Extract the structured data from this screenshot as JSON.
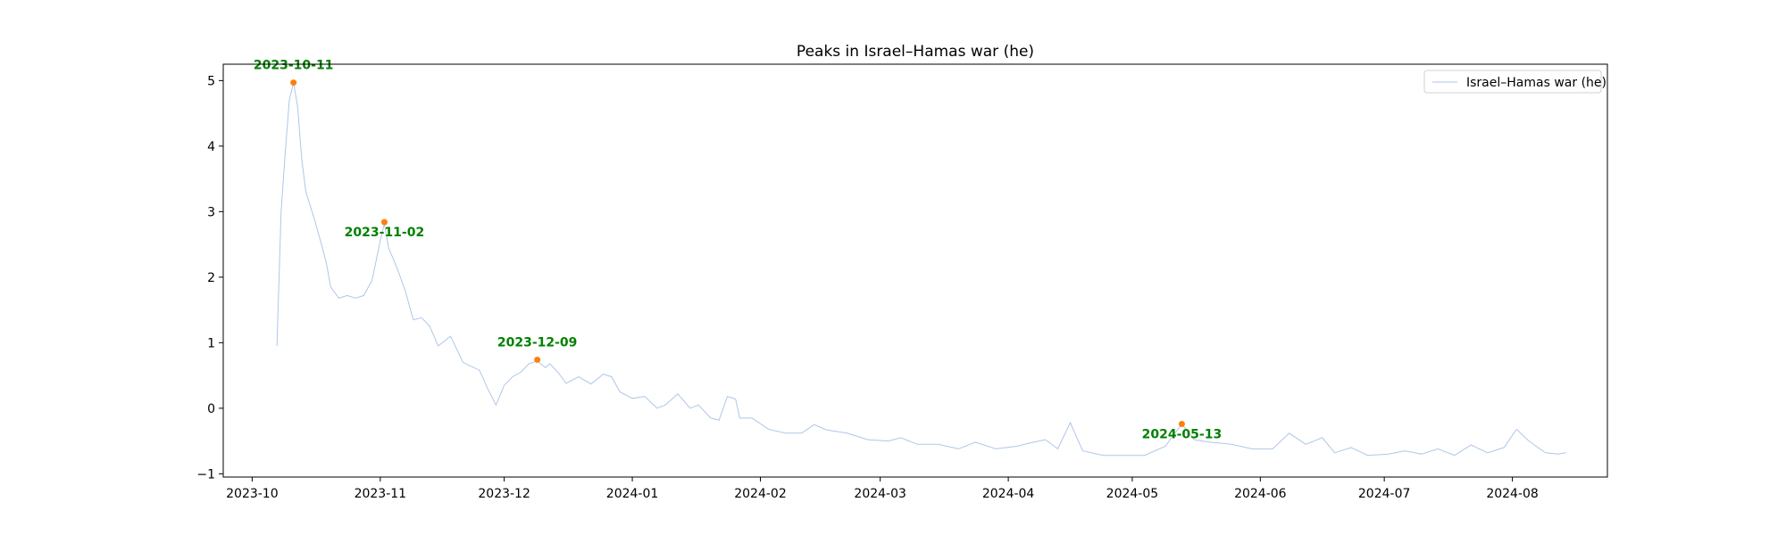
{
  "chart_data": {
    "type": "line",
    "title": "Peaks in Israel–Hamas war (he)",
    "xlabel": "",
    "ylabel": "",
    "xlim": [
      "2023-09-24",
      "2024-08-24"
    ],
    "ylim": [
      -1.05,
      5.25
    ],
    "x_ticks": [
      "2023-10-01",
      "2023-11-01",
      "2023-12-01",
      "2024-01-01",
      "2024-02-01",
      "2024-03-01",
      "2024-04-01",
      "2024-05-01",
      "2024-06-01",
      "2024-07-01",
      "2024-08-01"
    ],
    "y_ticks": [
      -1,
      0,
      1,
      2,
      3,
      4,
      5
    ],
    "grid": false,
    "legend": {
      "position": "top-right",
      "entries": [
        "Israel–Hamas war (he)"
      ]
    },
    "series": [
      {
        "name": "Israel–Hamas war (he)",
        "color": "#aec7e8",
        "points": [
          [
            "2023-10-07",
            0.95
          ],
          [
            "2023-10-08",
            3.0
          ],
          [
            "2023-10-09",
            3.9
          ],
          [
            "2023-10-10",
            4.7
          ],
          [
            "2023-10-11",
            4.97
          ],
          [
            "2023-10-12",
            4.6
          ],
          [
            "2023-10-13",
            3.8
          ],
          [
            "2023-10-14",
            3.3
          ],
          [
            "2023-10-16",
            2.9
          ],
          [
            "2023-10-18",
            2.45
          ],
          [
            "2023-10-19",
            2.2
          ],
          [
            "2023-10-20",
            1.85
          ],
          [
            "2023-10-22",
            1.68
          ],
          [
            "2023-10-24",
            1.72
          ],
          [
            "2023-10-26",
            1.68
          ],
          [
            "2023-10-28",
            1.72
          ],
          [
            "2023-10-30",
            1.95
          ],
          [
            "2023-11-01",
            2.55
          ],
          [
            "2023-11-02",
            2.82
          ],
          [
            "2023-11-03",
            2.45
          ],
          [
            "2023-11-05",
            2.15
          ],
          [
            "2023-11-07",
            1.8
          ],
          [
            "2023-11-09",
            1.35
          ],
          [
            "2023-11-11",
            1.38
          ],
          [
            "2023-11-13",
            1.25
          ],
          [
            "2023-11-15",
            0.95
          ],
          [
            "2023-11-17",
            1.05
          ],
          [
            "2023-11-18",
            1.1
          ],
          [
            "2023-11-21",
            0.7
          ],
          [
            "2023-11-25",
            0.58
          ],
          [
            "2023-11-27",
            0.3
          ],
          [
            "2023-11-29",
            0.05
          ],
          [
            "2023-12-01",
            0.35
          ],
          [
            "2023-12-03",
            0.48
          ],
          [
            "2023-12-05",
            0.55
          ],
          [
            "2023-12-07",
            0.68
          ],
          [
            "2023-12-09",
            0.72
          ],
          [
            "2023-12-11",
            0.62
          ],
          [
            "2023-12-12",
            0.68
          ],
          [
            "2023-12-14",
            0.55
          ],
          [
            "2023-12-16",
            0.38
          ],
          [
            "2023-12-19",
            0.48
          ],
          [
            "2023-12-22",
            0.37
          ],
          [
            "2023-12-25",
            0.52
          ],
          [
            "2023-12-27",
            0.48
          ],
          [
            "2023-12-29",
            0.25
          ],
          [
            "2024-01-01",
            0.15
          ],
          [
            "2024-01-04",
            0.18
          ],
          [
            "2024-01-07",
            0.0
          ],
          [
            "2024-01-09",
            0.05
          ],
          [
            "2024-01-12",
            0.22
          ],
          [
            "2024-01-15",
            0.0
          ],
          [
            "2024-01-17",
            0.05
          ],
          [
            "2024-01-20",
            -0.15
          ],
          [
            "2024-01-22",
            -0.18
          ],
          [
            "2024-01-24",
            0.18
          ],
          [
            "2024-01-26",
            0.14
          ],
          [
            "2024-01-27",
            -0.15
          ],
          [
            "2024-01-30",
            -0.15
          ],
          [
            "2024-02-03",
            -0.32
          ],
          [
            "2024-02-07",
            -0.38
          ],
          [
            "2024-02-11",
            -0.38
          ],
          [
            "2024-02-14",
            -0.25
          ],
          [
            "2024-02-17",
            -0.33
          ],
          [
            "2024-02-22",
            -0.38
          ],
          [
            "2024-02-27",
            -0.48
          ],
          [
            "2024-03-03",
            -0.5
          ],
          [
            "2024-03-06",
            -0.45
          ],
          [
            "2024-03-10",
            -0.55
          ],
          [
            "2024-03-15",
            -0.55
          ],
          [
            "2024-03-20",
            -0.62
          ],
          [
            "2024-03-24",
            -0.52
          ],
          [
            "2024-03-29",
            -0.62
          ],
          [
            "2024-04-03",
            -0.58
          ],
          [
            "2024-04-07",
            -0.52
          ],
          [
            "2024-04-10",
            -0.48
          ],
          [
            "2024-04-13",
            -0.62
          ],
          [
            "2024-04-16",
            -0.22
          ],
          [
            "2024-04-19",
            -0.65
          ],
          [
            "2024-04-24",
            -0.72
          ],
          [
            "2024-04-29",
            -0.72
          ],
          [
            "2024-05-04",
            -0.72
          ],
          [
            "2024-05-09",
            -0.58
          ],
          [
            "2024-05-13",
            -0.24
          ],
          [
            "2024-05-16",
            -0.48
          ],
          [
            "2024-05-20",
            -0.52
          ],
          [
            "2024-05-25",
            -0.55
          ],
          [
            "2024-05-30",
            -0.62
          ],
          [
            "2024-06-04",
            -0.62
          ],
          [
            "2024-06-08",
            -0.38
          ],
          [
            "2024-06-12",
            -0.55
          ],
          [
            "2024-06-16",
            -0.45
          ],
          [
            "2024-06-19",
            -0.68
          ],
          [
            "2024-06-23",
            -0.6
          ],
          [
            "2024-06-27",
            -0.72
          ],
          [
            "2024-07-02",
            -0.7
          ],
          [
            "2024-07-06",
            -0.65
          ],
          [
            "2024-07-10",
            -0.7
          ],
          [
            "2024-07-14",
            -0.62
          ],
          [
            "2024-07-18",
            -0.72
          ],
          [
            "2024-07-22",
            -0.56
          ],
          [
            "2024-07-26",
            -0.68
          ],
          [
            "2024-07-30",
            -0.6
          ],
          [
            "2024-08-02",
            -0.32
          ],
          [
            "2024-08-05",
            -0.5
          ],
          [
            "2024-08-09",
            -0.68
          ],
          [
            "2024-08-12",
            -0.7
          ],
          [
            "2024-08-14",
            -0.68
          ]
        ]
      }
    ],
    "peaks": [
      {
        "date": "2023-10-11",
        "value": 4.97,
        "label": "2023-10-11",
        "label_side": "above"
      },
      {
        "date": "2023-11-02",
        "value": 2.84,
        "label": "2023-11-02",
        "label_side": "below"
      },
      {
        "date": "2023-12-09",
        "value": 0.74,
        "label": "2023-12-09",
        "label_side": "above"
      },
      {
        "date": "2024-05-13",
        "value": -0.24,
        "label": "2024-05-13",
        "label_side": "below"
      }
    ],
    "peak_marker_color": "#ff7f0e",
    "peak_label_color": "#008000"
  }
}
